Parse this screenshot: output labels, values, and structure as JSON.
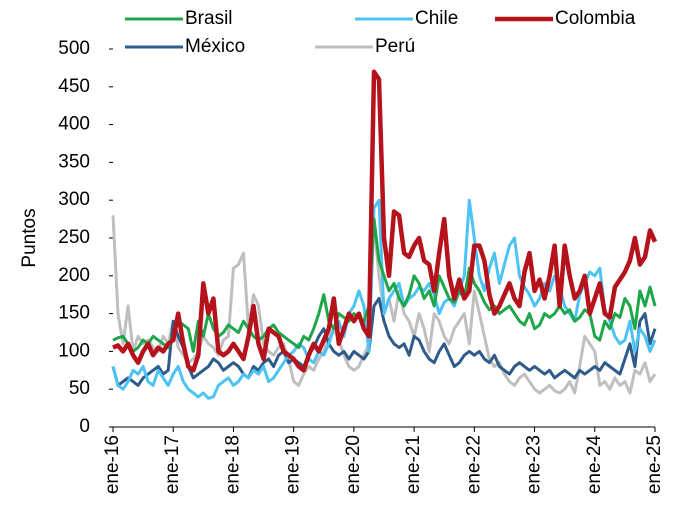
{
  "chart_data": {
    "type": "line",
    "y_label": "Puntos",
    "categories": [
      "ene-16",
      null,
      null,
      null,
      null,
      null,
      null,
      null,
      null,
      null,
      null,
      null,
      "ene-17",
      null,
      null,
      null,
      null,
      null,
      null,
      null,
      null,
      null,
      null,
      null,
      "ene-18",
      null,
      null,
      null,
      null,
      null,
      null,
      null,
      null,
      null,
      null,
      null,
      "ene-19",
      null,
      null,
      null,
      null,
      null,
      null,
      null,
      null,
      null,
      null,
      null,
      "ene-20",
      null,
      null,
      null,
      null,
      null,
      null,
      null,
      null,
      null,
      null,
      null,
      "ene-21",
      null,
      null,
      null,
      null,
      null,
      null,
      null,
      null,
      null,
      null,
      null,
      "ene-22",
      null,
      null,
      null,
      null,
      null,
      null,
      null,
      null,
      null,
      null,
      null,
      "ene-23",
      null,
      null,
      null,
      null,
      null,
      null,
      null,
      null,
      null,
      null,
      null,
      "ene-24",
      null,
      null,
      null,
      null,
      null,
      null,
      null,
      null,
      null,
      null,
      null,
      "ene-25"
    ],
    "ylim": [
      0,
      500
    ],
    "yticks": [
      0,
      50,
      100,
      150,
      200,
      250,
      300,
      350,
      400,
      450,
      500
    ],
    "grid": false,
    "series": [
      {
        "name": "Brasil",
        "color": "#1fa64a",
        "width": 3,
        "values": [
          115,
          118,
          120,
          110,
          100,
          105,
          115,
          110,
          120,
          115,
          110,
          105,
          120,
          140,
          135,
          130,
          100,
          140,
          120,
          150,
          130,
          120,
          125,
          135,
          130,
          125,
          140,
          130,
          120,
          115,
          120,
          130,
          135,
          125,
          120,
          115,
          110,
          105,
          120,
          115,
          130,
          150,
          175,
          140,
          130,
          150,
          145,
          140,
          150,
          145,
          140,
          160,
          275,
          220,
          200,
          180,
          190,
          170,
          160,
          175,
          200,
          190,
          170,
          180,
          160,
          200,
          185,
          170,
          165,
          180,
          170,
          210,
          190,
          180,
          165,
          155,
          160,
          150,
          155,
          160,
          150,
          140,
          135,
          150,
          130,
          135,
          150,
          145,
          150,
          160,
          150,
          155,
          140,
          145,
          155,
          150,
          120,
          115,
          140,
          130,
          150,
          145,
          170,
          160,
          130,
          180,
          160,
          185,
          160
        ]
      },
      {
        "name": "Chile",
        "color": "#4cc3f4",
        "width": 3,
        "values": [
          80,
          55,
          50,
          60,
          75,
          70,
          80,
          60,
          55,
          75,
          65,
          55,
          70,
          80,
          60,
          50,
          45,
          40,
          45,
          38,
          40,
          55,
          60,
          65,
          55,
          60,
          70,
          65,
          75,
          70,
          80,
          60,
          65,
          75,
          85,
          95,
          100,
          110,
          105,
          90,
          85,
          100,
          95,
          110,
          130,
          140,
          120,
          150,
          160,
          180,
          160,
          100,
          290,
          300,
          150,
          170,
          180,
          190,
          160,
          170,
          175,
          185,
          180,
          190,
          175,
          150,
          165,
          170,
          160,
          180,
          200,
          300,
          250,
          200,
          180,
          210,
          230,
          190,
          215,
          240,
          250,
          200,
          185,
          175,
          160,
          170,
          190,
          180,
          200,
          185,
          160,
          150,
          140,
          175,
          190,
          205,
          200,
          210,
          155,
          140,
          120,
          110,
          115,
          140,
          100,
          130,
          120,
          100,
          115
        ]
      },
      {
        "name": "Colombia",
        "color": "#b5121b",
        "width": 4.5,
        "values": [
          105,
          108,
          100,
          110,
          95,
          85,
          100,
          110,
          95,
          105,
          100,
          110,
          115,
          150,
          110,
          80,
          75,
          95,
          190,
          150,
          170,
          100,
          95,
          100,
          110,
          100,
          90,
          120,
          160,
          110,
          90,
          130,
          125,
          120,
          100,
          95,
          90,
          80,
          75,
          95,
          110,
          100,
          115,
          130,
          170,
          110,
          130,
          150,
          140,
          150,
          130,
          120,
          470,
          460,
          250,
          200,
          285,
          280,
          230,
          225,
          240,
          250,
          220,
          215,
          180,
          230,
          275,
          200,
          170,
          195,
          170,
          180,
          240,
          240,
          220,
          175,
          150,
          160,
          175,
          190,
          170,
          160,
          205,
          230,
          180,
          195,
          170,
          200,
          240,
          160,
          240,
          200,
          170,
          180,
          200,
          150,
          170,
          190,
          150,
          145,
          185,
          195,
          205,
          220,
          250,
          215,
          225,
          260,
          245
        ]
      },
      {
        "name": "México",
        "color": "#2e5b8a",
        "width": 3,
        "values": [
          80,
          55,
          60,
          65,
          60,
          55,
          65,
          70,
          75,
          80,
          70,
          75,
          140,
          120,
          105,
          80,
          65,
          70,
          75,
          80,
          90,
          85,
          75,
          80,
          85,
          80,
          70,
          65,
          80,
          75,
          85,
          90,
          80,
          95,
          100,
          85,
          90,
          85,
          80,
          95,
          105,
          120,
          130,
          110,
          100,
          95,
          100,
          90,
          100,
          95,
          90,
          100,
          160,
          170,
          140,
          120,
          110,
          105,
          110,
          95,
          120,
          115,
          100,
          90,
          85,
          100,
          110,
          95,
          80,
          85,
          95,
          100,
          95,
          100,
          90,
          85,
          95,
          80,
          75,
          70,
          80,
          85,
          80,
          75,
          80,
          75,
          70,
          75,
          65,
          70,
          75,
          70,
          65,
          75,
          70,
          75,
          80,
          75,
          85,
          80,
          75,
          70,
          90,
          110,
          80,
          140,
          150,
          110,
          130
        ]
      },
      {
        "name": "Perú",
        "color": "#bfbfbf",
        "width": 3,
        "values": [
          280,
          150,
          110,
          160,
          100,
          120,
          110,
          115,
          105,
          100,
          120,
          110,
          140,
          105,
          95,
          85,
          90,
          100,
          120,
          110,
          105,
          95,
          115,
          120,
          210,
          215,
          230,
          130,
          175,
          160,
          110,
          100,
          95,
          105,
          110,
          90,
          60,
          55,
          70,
          80,
          75,
          90,
          100,
          120,
          130,
          115,
          95,
          80,
          75,
          80,
          95,
          110,
          270,
          200,
          150,
          170,
          140,
          180,
          150,
          140,
          120,
          150,
          130,
          100,
          150,
          140,
          120,
          110,
          130,
          140,
          150,
          110,
          180,
          150,
          120,
          90,
          80,
          85,
          70,
          60,
          55,
          65,
          70,
          60,
          50,
          45,
          50,
          55,
          48,
          45,
          50,
          60,
          45,
          80,
          120,
          110,
          100,
          55,
          60,
          50,
          65,
          55,
          60,
          45,
          75,
          70,
          85,
          60,
          70
        ]
      }
    ]
  }
}
